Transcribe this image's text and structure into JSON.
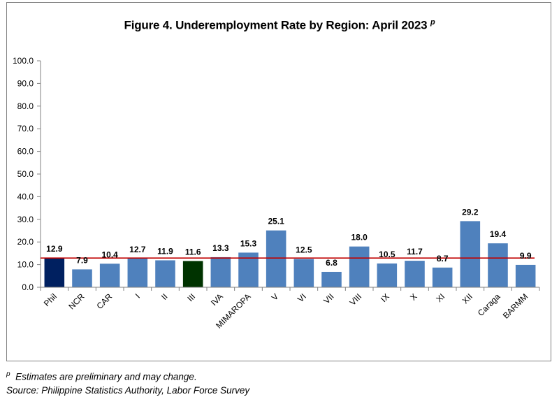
{
  "chart_data": {
    "type": "bar",
    "title": "Figure 4. Underemployment Rate by Region: April 2023",
    "title_superscript": "p",
    "categories": [
      "Phil",
      "NCR",
      "CAR",
      "I",
      "II",
      "III",
      "IVA",
      "MIMAROPA",
      "V",
      "VI",
      "VII",
      "VIII",
      "IX",
      "X",
      "XI",
      "XII",
      "Caraga",
      "BARMM"
    ],
    "values": [
      12.9,
      7.9,
      10.4,
      12.7,
      11.9,
      11.6,
      13.3,
      15.3,
      25.1,
      12.5,
      6.8,
      18.0,
      10.5,
      11.7,
      8.7,
      29.2,
      19.4,
      9.9
    ],
    "value_labels": [
      "12.9",
      "7.9",
      "10.4",
      "12.7",
      "11.9",
      "11.6",
      "13.3",
      "15.3",
      "25.1",
      "12.5",
      "6.8",
      "18.0",
      "10.5",
      "11.7",
      "8.7",
      "29.2",
      "19.4",
      "9.9"
    ],
    "ylim": [
      0,
      100
    ],
    "y_ticks": [
      "0.0",
      "10.0",
      "20.0",
      "30.0",
      "40.0",
      "50.0",
      "60.0",
      "70.0",
      "80.0",
      "90.0",
      "100.0"
    ],
    "reference_line": {
      "value": 12.9,
      "color": "#c00000"
    },
    "colors": {
      "default": "#4f81bd",
      "Phil": "#002060",
      "III": "#003300"
    },
    "grid": false,
    "legend": "none"
  },
  "footnotes": {
    "superscript": "p",
    "note": "Estimates are preliminary and may change.",
    "source": "Source: Philippine Statistics Authority, Labor Force Survey"
  }
}
